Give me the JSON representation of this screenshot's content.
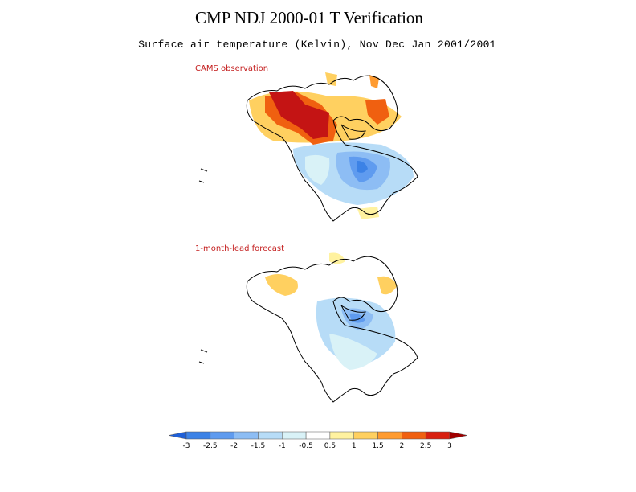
{
  "title": "CMP NDJ 2000-01 T Verification",
  "subtitle": "Surface air temperature (Kelvin), Nov Dec Jan 2001/2001",
  "panels": [
    {
      "label": "CAMS observation"
    },
    {
      "label": "1-month-lead forecast"
    }
  ],
  "colorbar": {
    "ticks": [
      "-3",
      "-2.5",
      "-2",
      "-1.5",
      "-1",
      "-0.5",
      "0.5",
      "1",
      "1.5",
      "2",
      "2.5",
      "3"
    ],
    "colors": [
      "#1e5fd8",
      "#3c82e6",
      "#5f9bef",
      "#8dbdf4",
      "#b7dcf7",
      "#d9f2f7",
      "#ffffff",
      "#fff2a0",
      "#ffd060",
      "#ff9b30",
      "#f06010",
      "#d82010",
      "#a00000"
    ]
  },
  "colors": {
    "text": "#000000",
    "panel_label": "#c41e1e"
  }
}
